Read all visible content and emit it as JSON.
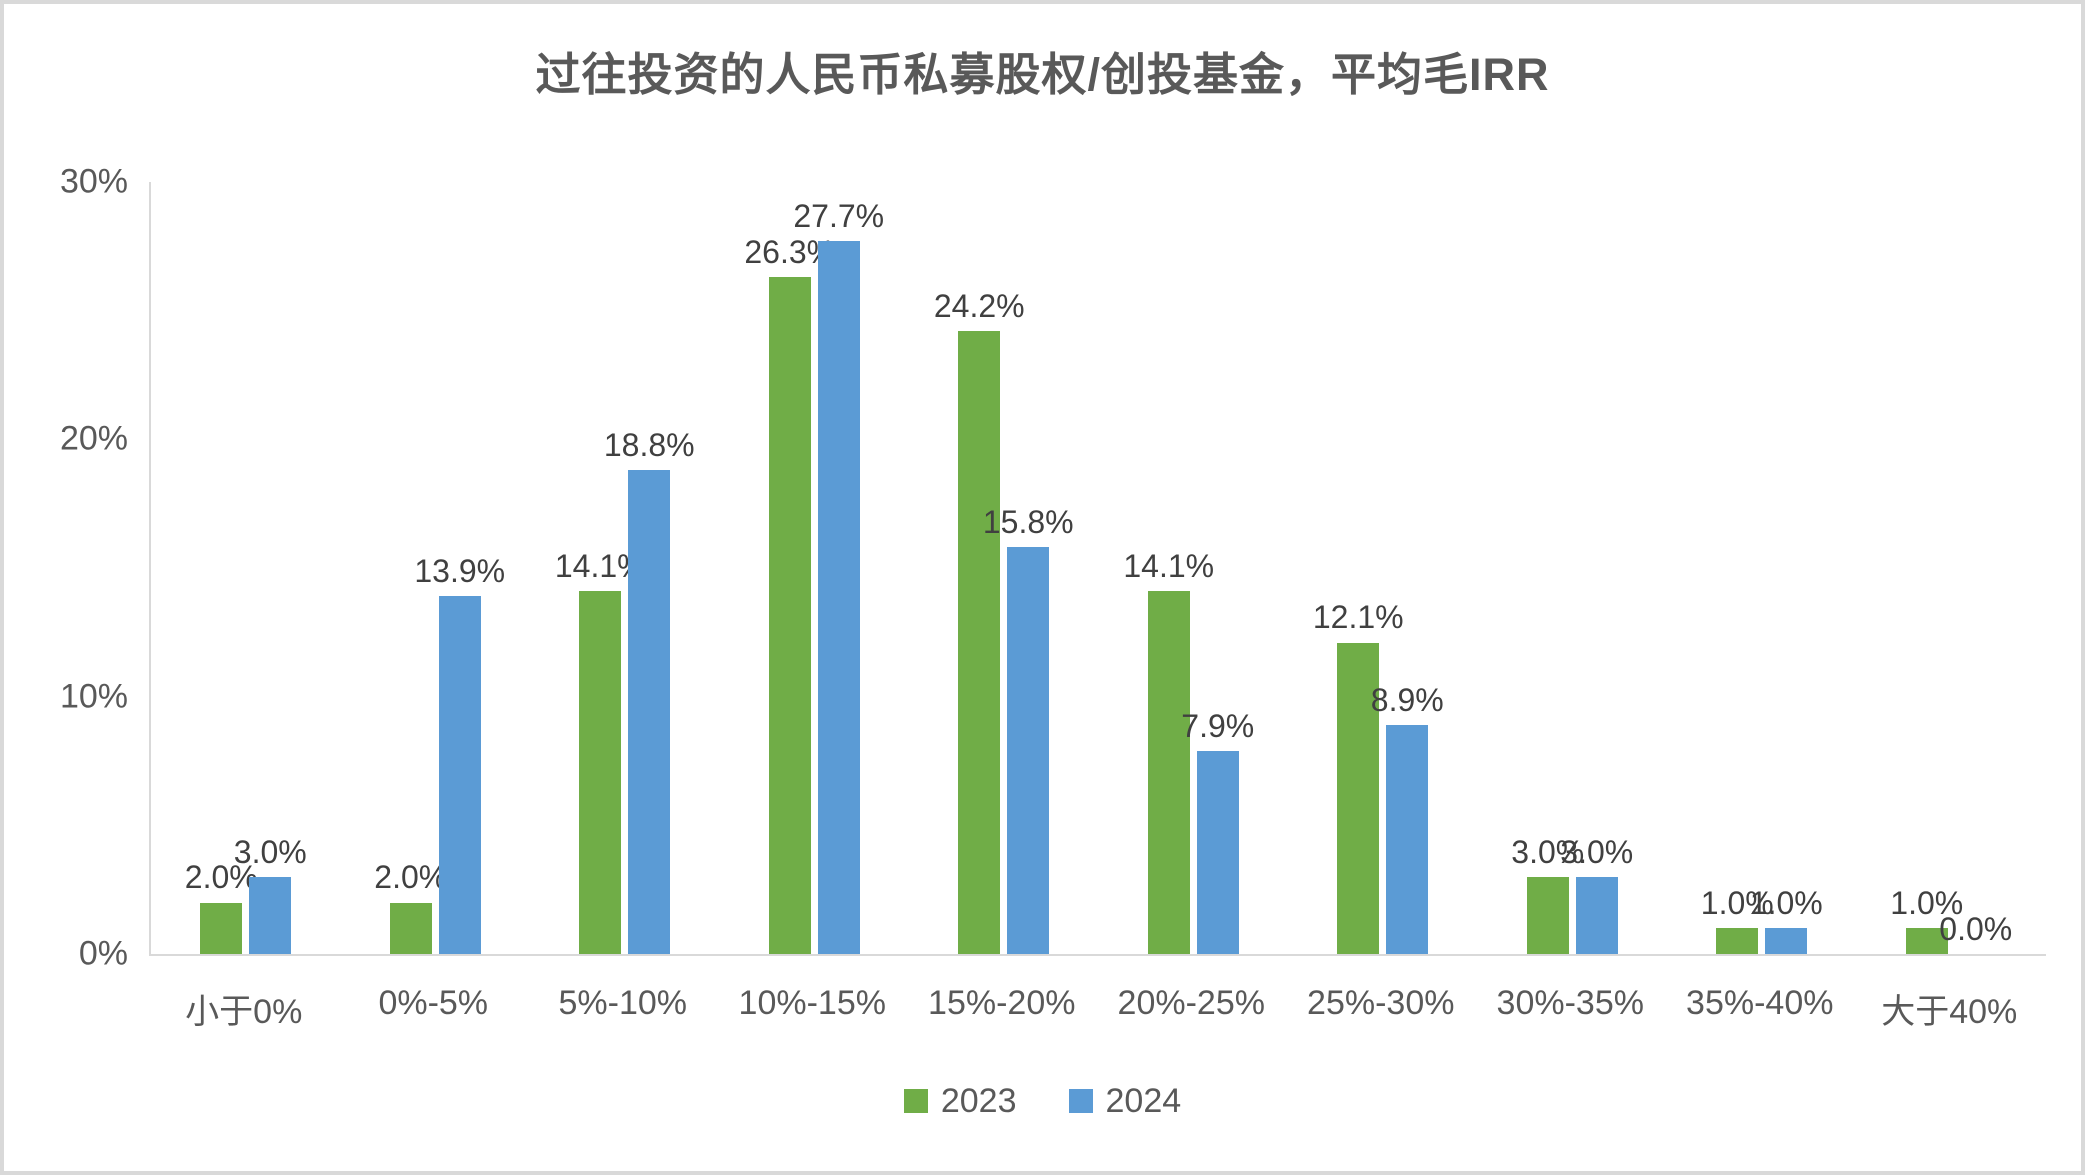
{
  "chart_data": {
    "type": "bar",
    "title": "过往投资的人民币私募股权/创投基金，平均毛IRR",
    "categories": [
      "小于0%",
      "0%-5%",
      "5%-10%",
      "10%-15%",
      "15%-20%",
      "20%-25%",
      "25%-30%",
      "30%-35%",
      "35%-40%",
      "大于40%"
    ],
    "series": [
      {
        "name": "2023",
        "color": "#70AD47",
        "values": [
          2.0,
          2.0,
          14.1,
          26.3,
          24.2,
          14.1,
          12.1,
          3.0,
          1.0,
          1.0
        ]
      },
      {
        "name": "2024",
        "color": "#5B9BD5",
        "values": [
          3.0,
          13.9,
          18.8,
          27.7,
          15.8,
          7.9,
          8.9,
          3.0,
          1.0,
          0.0
        ]
      }
    ],
    "y_axis": {
      "min": 0,
      "max": 30,
      "ticks": [
        "0%",
        "10%",
        "20%",
        "30%"
      ]
    },
    "data_label_suffix": "%",
    "data_label_decimals": 1,
    "legend_position": "bottom",
    "grid": false,
    "axis_color": "#D9D9D9",
    "text_color": "#595959",
    "data_label_color": "#404040"
  }
}
